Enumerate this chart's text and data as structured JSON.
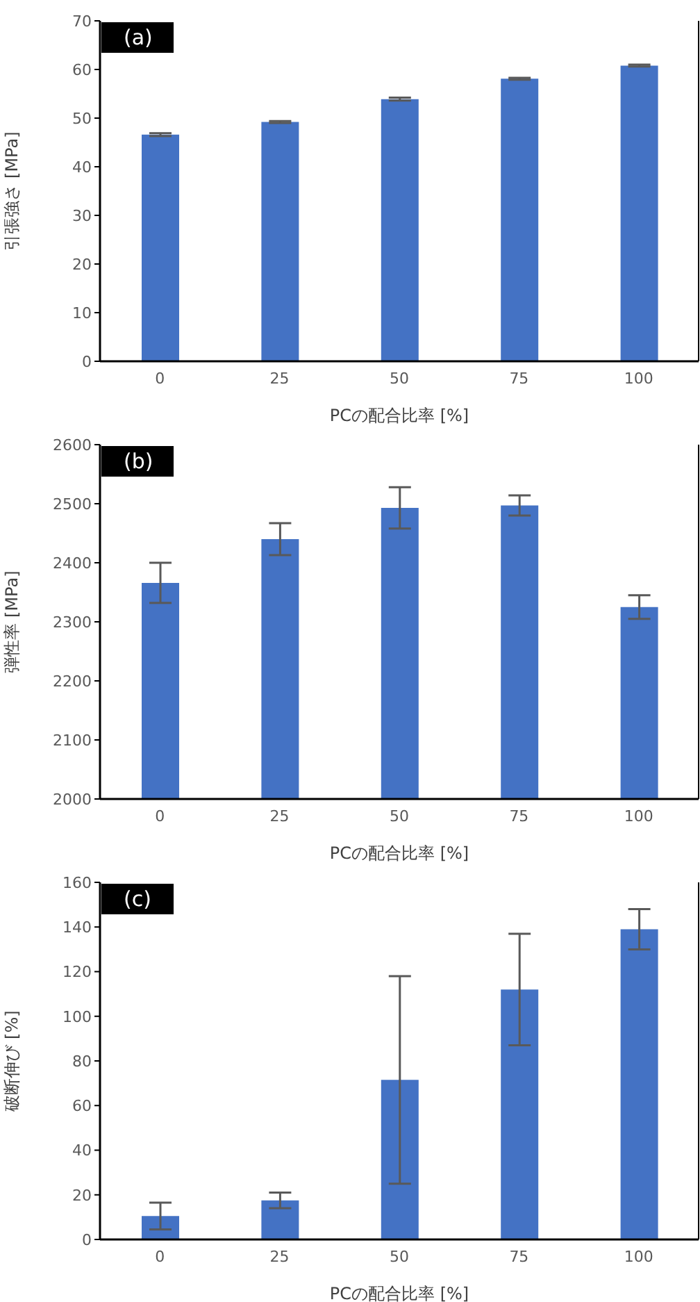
{
  "chart_data": [
    {
      "type": "bar",
      "annotations": [
        "(a)"
      ],
      "xlabel": "PCの配合比率 [%]",
      "ylabel": "引張強さ [MPa]",
      "categories": [
        "0",
        "25",
        "50",
        "75",
        "100"
      ],
      "values": [
        46.6,
        49.2,
        53.9,
        58.1,
        60.8
      ],
      "errors": [
        0.3,
        0.2,
        0.3,
        0.2,
        0.2
      ],
      "color": "#4472c4",
      "ylim": [
        0,
        70
      ],
      "yticks": [
        0,
        10,
        20,
        30,
        40,
        50,
        60,
        70
      ],
      "grid": false
    },
    {
      "type": "bar",
      "annotations": [
        "(b)"
      ],
      "xlabel": "PCの配合比率 [%]",
      "ylabel": "弾性率 [MPa]",
      "categories": [
        "0",
        "25",
        "50",
        "75",
        "100"
      ],
      "values": [
        2366,
        2440,
        2493,
        2497,
        2325
      ],
      "errors": [
        34,
        27,
        35,
        17,
        20
      ],
      "color": "#4472c4",
      "ylim": [
        2000,
        2600
      ],
      "yticks": [
        2000,
        2100,
        2200,
        2300,
        2400,
        2500,
        2600
      ],
      "grid": false
    },
    {
      "type": "bar",
      "annotations": [
        "(c)"
      ],
      "xlabel": "PCの配合比率 [%]",
      "ylabel": "破断伸び [%]",
      "categories": [
        "0",
        "25",
        "50",
        "75",
        "100"
      ],
      "values": [
        10.5,
        17.5,
        71.5,
        112,
        139
      ],
      "errors": [
        6,
        3.5,
        46.5,
        25,
        9
      ],
      "color": "#4472c4",
      "ylim": [
        0,
        160
      ],
      "yticks": [
        0,
        20,
        40,
        60,
        80,
        100,
        120,
        140,
        160
      ],
      "grid": false
    }
  ]
}
